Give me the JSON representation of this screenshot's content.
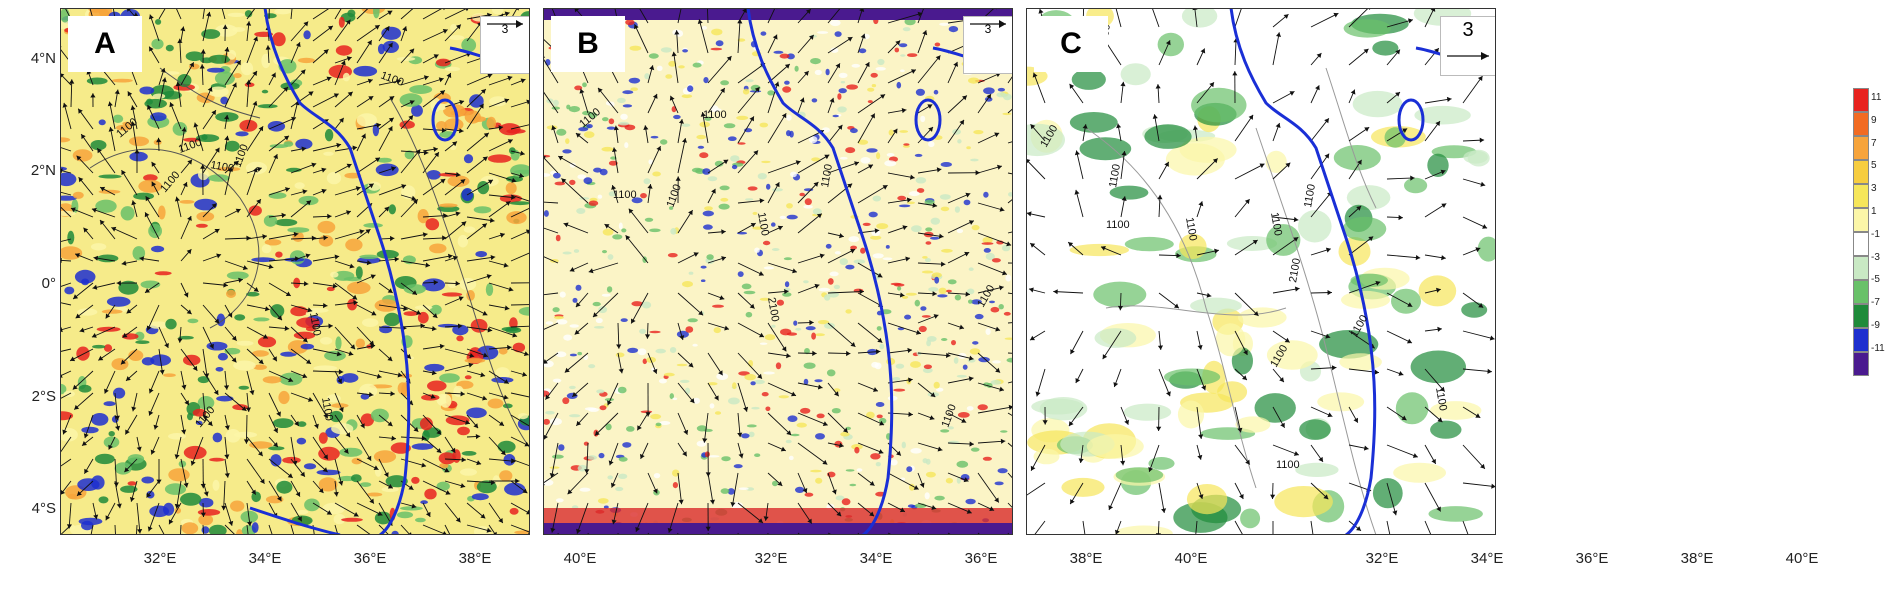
{
  "panels": [
    {
      "id": "A",
      "label": "A",
      "vector_ref": "3"
    },
    {
      "id": "B",
      "label": "B",
      "vector_ref": "3"
    },
    {
      "id": "C",
      "label": "C",
      "vector_ref": "3"
    }
  ],
  "lat_labels": [
    "4°N",
    "2°N",
    "0°",
    "2°S",
    "4°S"
  ],
  "lon_labels": [
    "32°E",
    "34°E",
    "36°E",
    "38°E",
    "40°E"
  ],
  "contour_labels": {
    "A": [
      "1100",
      "1100",
      "1100",
      "1100",
      "1100",
      "1100",
      "1100",
      "1100",
      "1100"
    ],
    "B": [
      "1100",
      "1100",
      "1100",
      "1100",
      "1100",
      "1100",
      "2100",
      "1100",
      "1100"
    ],
    "C": [
      "1100",
      "1100",
      "1100",
      "1100",
      "1100",
      "2100",
      "1100",
      "1100",
      "1100",
      "1100",
      "1100",
      "1100"
    ]
  },
  "colorbar": {
    "labels": [
      "11",
      "9",
      "7",
      "5",
      "3",
      "1",
      "-1",
      "-3",
      "-5",
      "-7",
      "-9",
      "-11"
    ],
    "colors": [
      "#e8221e",
      "#f26b22",
      "#f7a43b",
      "#f7cd3f",
      "#f6e65a",
      "#fbf6a8",
      "#ffffff",
      "#c9e9c4",
      "#69c169",
      "#1f8b3a",
      "#1d2fcf",
      "#4a1a8f"
    ]
  },
  "colors": {
    "coast": "#1a2fd6",
    "wind": "#111111",
    "contour": "#555555"
  }
}
